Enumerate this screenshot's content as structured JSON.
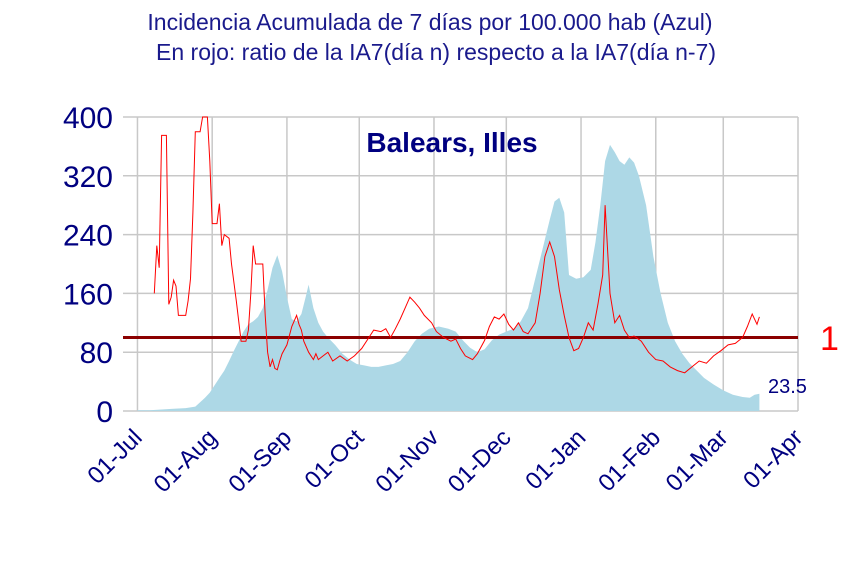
{
  "chart_data": {
    "type": "area",
    "title_line1": "Incidencia Acumulada de 7 días por 100.000 hab (Azul)",
    "title_line2": "En rojo: ratio de la IA7(día n) respecto a la IA7(día n-7)",
    "region_label": "Balears, Illes",
    "ylim": [
      0,
      400
    ],
    "y_ticks": [
      "0",
      "80",
      "160",
      "240",
      "320",
      "400"
    ],
    "x_ticks": [
      "01-Jul",
      "01-Aug",
      "01-Sep",
      "01-Oct",
      "01-Nov",
      "01-Dec",
      "01-Jan",
      "01-Feb",
      "01-Mar",
      "01-Apr"
    ],
    "grid": true,
    "reference_line": {
      "value": 100,
      "label": "1",
      "color": "#8b0000"
    },
    "last_value_label": "23.5",
    "colors": {
      "incidence_fill": "#add8e6",
      "ratio_line": "#ff0000",
      "text": "#000080"
    },
    "series": [
      {
        "kind": "area",
        "points": [
          [
            "2020-07-01",
            1
          ],
          [
            "2020-07-06",
            1
          ],
          [
            "2020-07-11",
            2
          ],
          [
            "2020-07-16",
            3
          ],
          [
            "2020-07-21",
            4
          ],
          [
            "2020-07-25",
            6
          ],
          [
            "2020-07-27",
            12
          ],
          [
            "2020-07-29",
            18
          ],
          [
            "2020-07-31",
            25
          ],
          [
            "2020-08-02",
            35
          ],
          [
            "2020-08-04",
            45
          ],
          [
            "2020-08-06",
            55
          ],
          [
            "2020-08-08",
            68
          ],
          [
            "2020-08-10",
            82
          ],
          [
            "2020-08-12",
            95
          ],
          [
            "2020-08-14",
            108
          ],
          [
            "2020-08-16",
            118
          ],
          [
            "2020-08-18",
            122
          ],
          [
            "2020-08-20",
            128
          ],
          [
            "2020-08-22",
            140
          ],
          [
            "2020-08-24",
            165
          ],
          [
            "2020-08-26",
            195
          ],
          [
            "2020-08-28",
            212
          ],
          [
            "2020-08-30",
            190
          ],
          [
            "2020-09-01",
            155
          ],
          [
            "2020-09-03",
            125
          ],
          [
            "2020-09-05",
            122
          ],
          [
            "2020-09-07",
            132
          ],
          [
            "2020-09-09",
            158
          ],
          [
            "2020-09-10",
            172
          ],
          [
            "2020-09-12",
            140
          ],
          [
            "2020-09-14",
            120
          ],
          [
            "2020-09-16",
            108
          ],
          [
            "2020-09-18",
            100
          ],
          [
            "2020-09-21",
            90
          ],
          [
            "2020-09-24",
            78
          ],
          [
            "2020-09-27",
            70
          ],
          [
            "2020-09-30",
            64
          ],
          [
            "2020-10-03",
            62
          ],
          [
            "2020-10-06",
            60
          ],
          [
            "2020-10-09",
            60
          ],
          [
            "2020-10-12",
            62
          ],
          [
            "2020-10-15",
            64
          ],
          [
            "2020-10-18",
            68
          ],
          [
            "2020-10-21",
            80
          ],
          [
            "2020-10-24",
            95
          ],
          [
            "2020-10-27",
            105
          ],
          [
            "2020-10-30",
            112
          ],
          [
            "2020-11-03",
            115
          ],
          [
            "2020-11-07",
            112
          ],
          [
            "2020-11-10",
            108
          ],
          [
            "2020-11-13",
            96
          ],
          [
            "2020-11-16",
            86
          ],
          [
            "2020-11-19",
            80
          ],
          [
            "2020-11-22",
            84
          ],
          [
            "2020-11-25",
            96
          ],
          [
            "2020-11-28",
            104
          ],
          [
            "2020-12-01",
            108
          ],
          [
            "2020-12-04",
            112
          ],
          [
            "2020-12-07",
            122
          ],
          [
            "2020-12-10",
            140
          ],
          [
            "2020-12-13",
            180
          ],
          [
            "2020-12-16",
            220
          ],
          [
            "2020-12-19",
            260
          ],
          [
            "2020-12-21",
            285
          ],
          [
            "2020-12-23",
            290
          ],
          [
            "2020-12-25",
            270
          ],
          [
            "2020-12-27",
            185
          ],
          [
            "2020-12-30",
            180
          ],
          [
            "2021-01-02",
            182
          ],
          [
            "2021-01-05",
            192
          ],
          [
            "2021-01-07",
            230
          ],
          [
            "2021-01-09",
            280
          ],
          [
            "2021-01-11",
            340
          ],
          [
            "2021-01-13",
            362
          ],
          [
            "2021-01-15",
            352
          ],
          [
            "2021-01-17",
            340
          ],
          [
            "2021-01-19",
            335
          ],
          [
            "2021-01-21",
            345
          ],
          [
            "2021-01-23",
            338
          ],
          [
            "2021-01-25",
            320
          ],
          [
            "2021-01-28",
            280
          ],
          [
            "2021-01-31",
            210
          ],
          [
            "2021-02-03",
            160
          ],
          [
            "2021-02-06",
            120
          ],
          [
            "2021-02-09",
            95
          ],
          [
            "2021-02-12",
            78
          ],
          [
            "2021-02-15",
            65
          ],
          [
            "2021-02-18",
            55
          ],
          [
            "2021-02-21",
            45
          ],
          [
            "2021-02-25",
            36
          ],
          [
            "2021-03-01",
            28
          ],
          [
            "2021-03-05",
            22
          ],
          [
            "2021-03-09",
            19
          ],
          [
            "2021-03-12",
            18
          ],
          [
            "2021-03-14",
            22
          ],
          [
            "2021-03-16",
            23.5
          ]
        ]
      },
      {
        "kind": "line",
        "points": [
          [
            "2020-07-08",
            160
          ],
          [
            "2020-07-09",
            225
          ],
          [
            "2020-07-10",
            195
          ],
          [
            "2020-07-11",
            375
          ],
          [
            "2020-07-13",
            375
          ],
          [
            "2020-07-14",
            145
          ],
          [
            "2020-07-15",
            155
          ],
          [
            "2020-07-16",
            178
          ],
          [
            "2020-07-17",
            170
          ],
          [
            "2020-07-18",
            130
          ],
          [
            "2020-07-21",
            130
          ],
          [
            "2020-07-22",
            150
          ],
          [
            "2020-07-23",
            180
          ],
          [
            "2020-07-24",
            270
          ],
          [
            "2020-07-25",
            380
          ],
          [
            "2020-07-27",
            380
          ],
          [
            "2020-07-28",
            400
          ],
          [
            "2020-07-30",
            400
          ],
          [
            "2020-07-31",
            340
          ],
          [
            "2020-08-01",
            255
          ],
          [
            "2020-08-03",
            255
          ],
          [
            "2020-08-04",
            282
          ],
          [
            "2020-08-05",
            225
          ],
          [
            "2020-08-06",
            240
          ],
          [
            "2020-08-08",
            235
          ],
          [
            "2020-08-09",
            200
          ],
          [
            "2020-08-11",
            150
          ],
          [
            "2020-08-13",
            95
          ],
          [
            "2020-08-15",
            95
          ],
          [
            "2020-08-16",
            110
          ],
          [
            "2020-08-17",
            160
          ],
          [
            "2020-08-18",
            225
          ],
          [
            "2020-08-19",
            200
          ],
          [
            "2020-08-22",
            200
          ],
          [
            "2020-08-23",
            130
          ],
          [
            "2020-08-24",
            80
          ],
          [
            "2020-08-25",
            60
          ],
          [
            "2020-08-26",
            70
          ],
          [
            "2020-08-27",
            58
          ],
          [
            "2020-08-28",
            56
          ],
          [
            "2020-08-29",
            68
          ],
          [
            "2020-08-30",
            78
          ],
          [
            "2020-09-01",
            90
          ],
          [
            "2020-09-03",
            115
          ],
          [
            "2020-09-05",
            130
          ],
          [
            "2020-09-06",
            118
          ],
          [
            "2020-09-07",
            110
          ],
          [
            "2020-09-08",
            95
          ],
          [
            "2020-09-10",
            80
          ],
          [
            "2020-09-12",
            70
          ],
          [
            "2020-09-13",
            78
          ],
          [
            "2020-09-14",
            70
          ],
          [
            "2020-09-16",
            75
          ],
          [
            "2020-09-18",
            80
          ],
          [
            "2020-09-20",
            68
          ],
          [
            "2020-09-23",
            75
          ],
          [
            "2020-09-26",
            68
          ],
          [
            "2020-09-29",
            75
          ],
          [
            "2020-10-02",
            85
          ],
          [
            "2020-10-05",
            100
          ],
          [
            "2020-10-07",
            110
          ],
          [
            "2020-10-10",
            108
          ],
          [
            "2020-10-12",
            112
          ],
          [
            "2020-10-14",
            100
          ],
          [
            "2020-10-16",
            112
          ],
          [
            "2020-10-18",
            125
          ],
          [
            "2020-10-20",
            140
          ],
          [
            "2020-10-22",
            155
          ],
          [
            "2020-10-24",
            148
          ],
          [
            "2020-10-26",
            140
          ],
          [
            "2020-10-28",
            130
          ],
          [
            "2020-10-31",
            120
          ],
          [
            "2020-11-02",
            108
          ],
          [
            "2020-11-05",
            100
          ],
          [
            "2020-11-08",
            95
          ],
          [
            "2020-11-10",
            98
          ],
          [
            "2020-11-12",
            85
          ],
          [
            "2020-11-14",
            75
          ],
          [
            "2020-11-17",
            70
          ],
          [
            "2020-11-19",
            78
          ],
          [
            "2020-11-22",
            96
          ],
          [
            "2020-11-24",
            115
          ],
          [
            "2020-11-26",
            128
          ],
          [
            "2020-11-28",
            125
          ],
          [
            "2020-11-30",
            132
          ],
          [
            "2020-12-02",
            118
          ],
          [
            "2020-12-04",
            110
          ],
          [
            "2020-12-06",
            120
          ],
          [
            "2020-12-08",
            108
          ],
          [
            "2020-12-10",
            105
          ],
          [
            "2020-12-13",
            120
          ],
          [
            "2020-12-15",
            160
          ],
          [
            "2020-12-17",
            210
          ],
          [
            "2020-12-19",
            230
          ],
          [
            "2020-12-21",
            210
          ],
          [
            "2020-12-23",
            165
          ],
          [
            "2020-12-25",
            130
          ],
          [
            "2020-12-27",
            100
          ],
          [
            "2020-12-29",
            82
          ],
          [
            "2020-12-31",
            85
          ],
          [
            "2021-01-02",
            100
          ],
          [
            "2021-01-04",
            120
          ],
          [
            "2021-01-06",
            110
          ],
          [
            "2021-01-08",
            145
          ],
          [
            "2021-01-10",
            185
          ],
          [
            "2021-01-11",
            280
          ],
          [
            "2021-01-13",
            160
          ],
          [
            "2021-01-15",
            120
          ],
          [
            "2021-01-17",
            130
          ],
          [
            "2021-01-19",
            110
          ],
          [
            "2021-01-21",
            100
          ],
          [
            "2021-01-23",
            102
          ],
          [
            "2021-01-26",
            95
          ],
          [
            "2021-01-29",
            80
          ],
          [
            "2021-02-01",
            70
          ],
          [
            "2021-02-04",
            68
          ],
          [
            "2021-02-07",
            60
          ],
          [
            "2021-02-10",
            55
          ],
          [
            "2021-02-13",
            52
          ],
          [
            "2021-02-16",
            60
          ],
          [
            "2021-02-19",
            68
          ],
          [
            "2021-02-22",
            65
          ],
          [
            "2021-02-25",
            75
          ],
          [
            "2021-02-28",
            82
          ],
          [
            "2021-03-03",
            90
          ],
          [
            "2021-03-06",
            92
          ],
          [
            "2021-03-09",
            100
          ],
          [
            "2021-03-11",
            115
          ],
          [
            "2021-03-13",
            132
          ],
          [
            "2021-03-15",
            118
          ],
          [
            "2021-03-16",
            128
          ]
        ]
      }
    ]
  }
}
